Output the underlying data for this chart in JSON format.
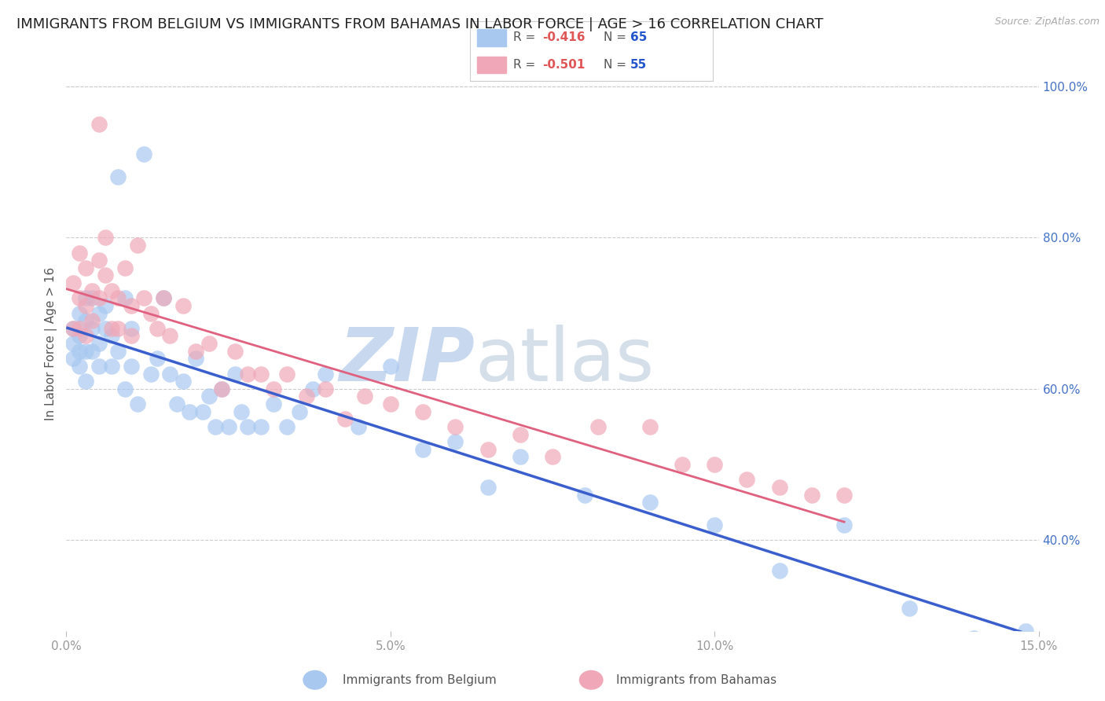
{
  "title": "IMMIGRANTS FROM BELGIUM VS IMMIGRANTS FROM BAHAMAS IN LABOR FORCE | AGE > 16 CORRELATION CHART",
  "source": "Source: ZipAtlas.com",
  "ylabel": "In Labor Force | Age > 16",
  "xlim": [
    0.0,
    0.15
  ],
  "ylim": [
    0.28,
    1.04
  ],
  "xticks": [
    0.0,
    0.05,
    0.1,
    0.15
  ],
  "xticklabels": [
    "0.0%",
    "5.0%",
    "10.0%",
    "15.0%"
  ],
  "yticks": [
    0.4,
    0.6,
    0.8,
    1.0
  ],
  "yticklabels": [
    "40.0%",
    "60.0%",
    "80.0%",
    "100.0%"
  ],
  "background_color": "#ffffff",
  "grid_color": "#cccccc",
  "belgium_color": "#a8c8f0",
  "bahamas_color": "#f0a8b8",
  "belgium_line_color": "#3a5fcd",
  "bahamas_line_color": "#e06080",
  "belgium_R": -0.416,
  "belgium_N": 65,
  "bahamas_R": -0.501,
  "bahamas_N": 55,
  "right_axis_color": "#4472c4",
  "title_fontsize": 13,
  "axis_label_fontsize": 11,
  "tick_fontsize": 11,
  "legend_fontsize": 12,
  "belgium_x": [
    0.001,
    0.001,
    0.001,
    0.002,
    0.002,
    0.002,
    0.002,
    0.003,
    0.003,
    0.003,
    0.003,
    0.004,
    0.004,
    0.004,
    0.005,
    0.005,
    0.005,
    0.006,
    0.006,
    0.007,
    0.007,
    0.008,
    0.008,
    0.009,
    0.009,
    0.01,
    0.01,
    0.011,
    0.012,
    0.013,
    0.014,
    0.015,
    0.016,
    0.017,
    0.018,
    0.019,
    0.02,
    0.021,
    0.022,
    0.023,
    0.024,
    0.025,
    0.026,
    0.027,
    0.028,
    0.03,
    0.032,
    0.034,
    0.036,
    0.038,
    0.04,
    0.045,
    0.05,
    0.055,
    0.06,
    0.065,
    0.07,
    0.08,
    0.09,
    0.1,
    0.11,
    0.12,
    0.13,
    0.14,
    0.148
  ],
  "belgium_y": [
    0.68,
    0.66,
    0.64,
    0.7,
    0.67,
    0.63,
    0.65,
    0.72,
    0.69,
    0.65,
    0.61,
    0.68,
    0.72,
    0.65,
    0.7,
    0.66,
    0.63,
    0.71,
    0.68,
    0.67,
    0.63,
    0.88,
    0.65,
    0.72,
    0.6,
    0.68,
    0.63,
    0.58,
    0.91,
    0.62,
    0.64,
    0.72,
    0.62,
    0.58,
    0.61,
    0.57,
    0.64,
    0.57,
    0.59,
    0.55,
    0.6,
    0.55,
    0.62,
    0.57,
    0.55,
    0.55,
    0.58,
    0.55,
    0.57,
    0.6,
    0.62,
    0.55,
    0.63,
    0.52,
    0.53,
    0.47,
    0.51,
    0.46,
    0.45,
    0.42,
    0.36,
    0.42,
    0.31,
    0.27,
    0.28
  ],
  "bahamas_x": [
    0.001,
    0.001,
    0.002,
    0.002,
    0.002,
    0.003,
    0.003,
    0.003,
    0.004,
    0.004,
    0.005,
    0.005,
    0.005,
    0.006,
    0.006,
    0.007,
    0.007,
    0.008,
    0.008,
    0.009,
    0.01,
    0.01,
    0.011,
    0.012,
    0.013,
    0.014,
    0.015,
    0.016,
    0.018,
    0.02,
    0.022,
    0.024,
    0.026,
    0.028,
    0.03,
    0.032,
    0.034,
    0.037,
    0.04,
    0.043,
    0.046,
    0.05,
    0.055,
    0.06,
    0.065,
    0.07,
    0.075,
    0.082,
    0.09,
    0.095,
    0.1,
    0.105,
    0.11,
    0.115,
    0.12
  ],
  "bahamas_y": [
    0.74,
    0.68,
    0.78,
    0.72,
    0.68,
    0.76,
    0.71,
    0.67,
    0.73,
    0.69,
    0.95,
    0.77,
    0.72,
    0.8,
    0.75,
    0.73,
    0.68,
    0.72,
    0.68,
    0.76,
    0.71,
    0.67,
    0.79,
    0.72,
    0.7,
    0.68,
    0.72,
    0.67,
    0.71,
    0.65,
    0.66,
    0.6,
    0.65,
    0.62,
    0.62,
    0.6,
    0.62,
    0.59,
    0.6,
    0.56,
    0.59,
    0.58,
    0.57,
    0.55,
    0.52,
    0.54,
    0.51,
    0.55,
    0.55,
    0.5,
    0.5,
    0.48,
    0.47,
    0.46,
    0.46
  ],
  "watermark_zip": "ZIP",
  "watermark_atlas": "atlas",
  "watermark_color": "#c8d8ee"
}
